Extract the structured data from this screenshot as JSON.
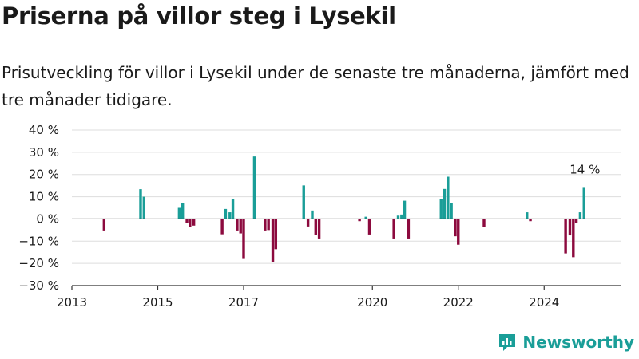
{
  "title": "Priserna på villor steg i Lysekil",
  "subtitle": "Prisutveckling för villor i Lysekil under de senaste tre månaderna, jämfört med tre månader tidigare.",
  "brand": {
    "name": "Newsworthy",
    "logo_icon": "newsworthy-logo-icon",
    "color": "#1a9e98"
  },
  "colors": {
    "positive": "#1a9e98",
    "negative": "#8c0a3e"
  },
  "chart_data": {
    "type": "bar",
    "xlabel": "",
    "ylabel": "",
    "ylim": [
      -30,
      40
    ],
    "xlim": [
      2013,
      2025.8
    ],
    "grid": true,
    "y_ticks": [
      "−30 %",
      "−20 %",
      "−10 %",
      "0 %",
      "10 %",
      "20 %",
      "30 %",
      "40 %"
    ],
    "y_tick_values": [
      -30,
      -20,
      -10,
      0,
      10,
      20,
      30,
      40
    ],
    "x_ticks": [
      "2013",
      "2015",
      "2017",
      "2020",
      "2022",
      "2024"
    ],
    "x_tick_values": [
      2013,
      2015,
      2017,
      2020,
      2022,
      2024
    ],
    "annotation": {
      "text": "14 %",
      "x": 2024.95,
      "y": 14
    },
    "x": [
      2013.75,
      2014.6,
      2014.68,
      2015.5,
      2015.58,
      2015.68,
      2015.75,
      2015.84,
      2016.5,
      2016.58,
      2016.68,
      2016.75,
      2016.85,
      2016.93,
      2017.0,
      2017.25,
      2017.5,
      2017.58,
      2017.68,
      2017.75,
      2018.4,
      2018.5,
      2018.6,
      2018.68,
      2018.76,
      2019.7,
      2019.85,
      2019.93,
      2020.5,
      2020.6,
      2020.68,
      2020.75,
      2020.84,
      2021.6,
      2021.68,
      2021.76,
      2021.84,
      2021.93,
      2022.0,
      2022.6,
      2023.6,
      2023.68,
      2024.5,
      2024.6,
      2024.68,
      2024.75,
      2024.84,
      2024.93
    ],
    "values": [
      -5.2,
      13.4,
      10,
      5,
      7,
      -2,
      -3.6,
      -3,
      -6.9,
      4.5,
      3,
      8.8,
      -5.2,
      -6.5,
      -18,
      28.1,
      -5.2,
      -5,
      -19.3,
      -13.6,
      15.1,
      -3.4,
      3.8,
      -7.1,
      -8.8,
      -1,
      1,
      -7,
      -8.8,
      1.5,
      2,
      8.2,
      -8.8,
      9,
      13.5,
      19,
      7,
      -7.8,
      -11.6,
      -3.5,
      3,
      -1,
      -15.5,
      -7.4,
      -17.2,
      -2,
      3,
      14
    ]
  }
}
